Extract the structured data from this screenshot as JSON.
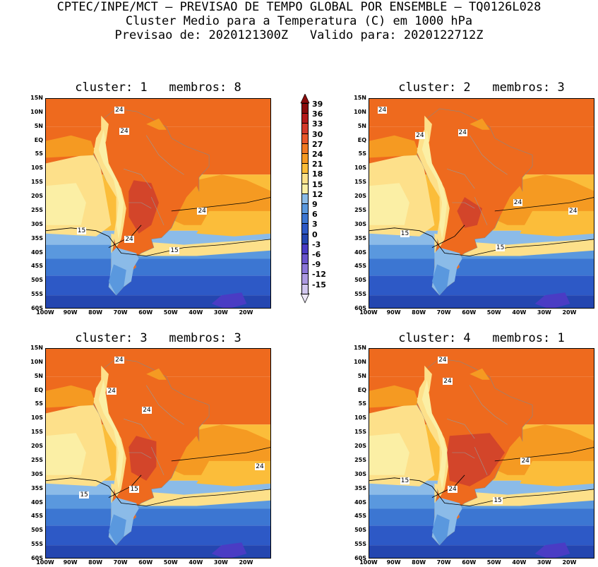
{
  "header": {
    "line1": "CPTEC/INPE/MCT – PREVISAO DE TEMPO GLOBAL POR ENSEMBLE – TQ0126L028",
    "line2": "Cluster Medio para a Temperatura (C) em 1000 hPa",
    "line3": "Previsao de: 2020121300Z   Valido para: 2020122712Z"
  },
  "panels": [
    {
      "title": "cluster: 1   membros: 8"
    },
    {
      "title": "cluster: 2   membros: 3"
    },
    {
      "title": "cluster: 3   membros: 3"
    },
    {
      "title": "cluster: 4   membros: 1"
    }
  ],
  "y_ticks": [
    "15N",
    "10N",
    "5N",
    "EQ",
    "5S",
    "10S",
    "15S",
    "20S",
    "25S",
    "30S",
    "35S",
    "40S",
    "45S",
    "50S",
    "55S",
    "60S"
  ],
  "x_ticks": [
    "100W",
    "90W",
    "80W",
    "70W",
    "60W",
    "50W",
    "40W",
    "30W",
    "20W"
  ],
  "colorbar": {
    "labels": [
      "39",
      "36",
      "33",
      "30",
      "27",
      "24",
      "21",
      "18",
      "15",
      "12",
      "9",
      "6",
      "3",
      "0",
      "-3",
      "-6",
      "-9",
      "-12",
      "-15"
    ],
    "colors": [
      "#8a0c0c",
      "#b31a1a",
      "#d33a2a",
      "#e8582a",
      "#f07a22",
      "#f59a22",
      "#fbbd3a",
      "#fde08a",
      "#fbefa5",
      "#8bbbe8",
      "#5a98de",
      "#3c76d2",
      "#2d59c6",
      "#2446b0",
      "#4a3cc4",
      "#6a55cc",
      "#8b76d8",
      "#ad9ae2",
      "#d1c6ef"
    ]
  },
  "contour_labels": [
    "24",
    "24",
    "24",
    "15",
    "15",
    "24"
  ],
  "contour_labels_all": [
    [
      "24",
      "24",
      "24",
      "15",
      "24",
      "15"
    ],
    [
      "24",
      "24",
      "24",
      "24",
      "24",
      "15",
      "15"
    ],
    [
      "24",
      "24",
      "24",
      "15",
      "24",
      "15"
    ],
    [
      "24",
      "24",
      "24",
      "15",
      "24",
      "15"
    ]
  ]
}
